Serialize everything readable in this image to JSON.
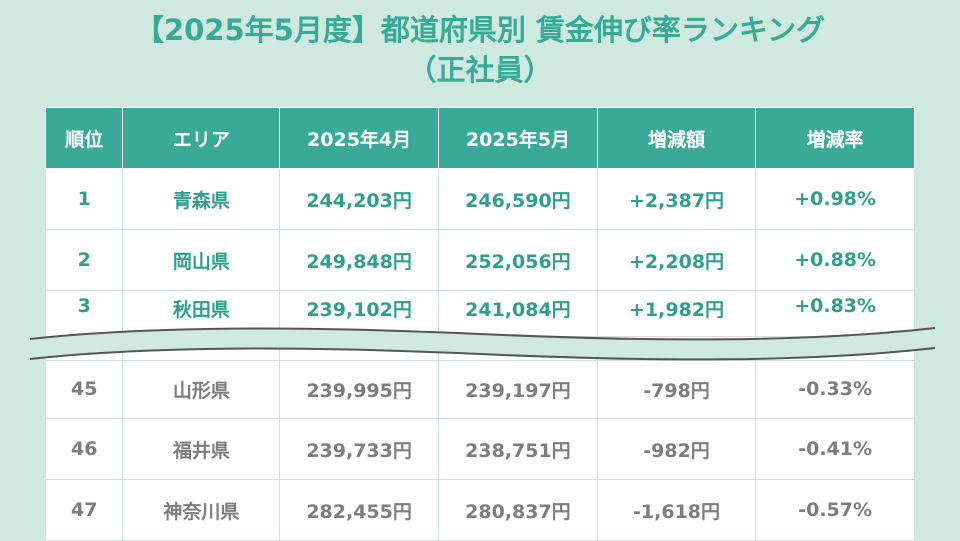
{
  "title": {
    "line1": "【2025年5月度】都道府県別 賃金伸び率ランキング",
    "line2": "（正社員）"
  },
  "table": {
    "headers": [
      "順位",
      "エリア",
      "2025年4月",
      "2025年5月",
      "増減額",
      "増減率"
    ],
    "top_rows": [
      [
        "1",
        "青森県",
        "244,203円",
        "246,590円",
        "+2,387円",
        "+0.98%"
      ],
      [
        "2",
        "岡山県",
        "249,848円",
        "252,056円",
        "+2,208円",
        "+0.88%"
      ],
      [
        "3",
        "秋田県",
        "239,102円",
        "241,084円",
        "+1,982円",
        "+0.83%"
      ]
    ],
    "bottom_rows": [
      [
        "45",
        "山形県",
        "239,995円",
        "239,197円",
        "-798円",
        "-0.33%"
      ],
      [
        "46",
        "福井県",
        "239,733円",
        "238,751円",
        "-982円",
        "-0.41%"
      ],
      [
        "47",
        "神奈川県",
        "282,455円",
        "280,837円",
        "-1,618円",
        "-0.57%"
      ]
    ]
  },
  "colors": {
    "background": "#cfe9e1",
    "header_bg": "#3aaa98",
    "accent_text": "#2f9f8b",
    "muted_text": "#7d7d7d"
  }
}
